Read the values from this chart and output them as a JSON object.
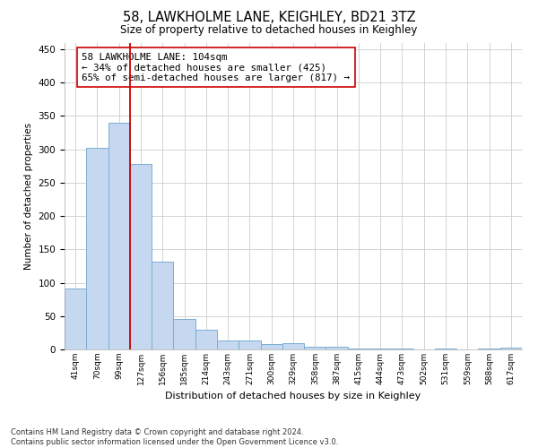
{
  "title": "58, LAWKHOLME LANE, KEIGHLEY, BD21 3TZ",
  "subtitle": "Size of property relative to detached houses in Keighley",
  "xlabel": "Distribution of detached houses by size in Keighley",
  "ylabel": "Number of detached properties",
  "bin_labels": [
    "41sqm",
    "70sqm",
    "99sqm",
    "127sqm",
    "156sqm",
    "185sqm",
    "214sqm",
    "243sqm",
    "271sqm",
    "300sqm",
    "329sqm",
    "358sqm",
    "387sqm",
    "415sqm",
    "444sqm",
    "473sqm",
    "502sqm",
    "531sqm",
    "559sqm",
    "588sqm",
    "617sqm"
  ],
  "bar_heights": [
    92,
    302,
    340,
    278,
    132,
    46,
    30,
    13,
    13,
    8,
    9,
    4,
    4,
    2,
    2,
    1,
    0,
    1,
    0,
    2,
    3
  ],
  "bar_color": "#c5d8f0",
  "bar_edge_color": "#7aadd4",
  "grid_color": "#cccccc",
  "vline_x": 2.5,
  "vline_color": "#cc0000",
  "annotation_text": "58 LAWKHOLME LANE: 104sqm\n← 34% of detached houses are smaller (425)\n65% of semi-detached houses are larger (817) →",
  "annotation_box_color": "#ffffff",
  "annotation_box_edgecolor": "#cc0000",
  "ylim": [
    0,
    460
  ],
  "yticks": [
    0,
    50,
    100,
    150,
    200,
    250,
    300,
    350,
    400,
    450
  ],
  "footer": "Contains HM Land Registry data © Crown copyright and database right 2024.\nContains public sector information licensed under the Open Government Licence v3.0.",
  "figsize": [
    6.0,
    5.0
  ],
  "dpi": 100
}
